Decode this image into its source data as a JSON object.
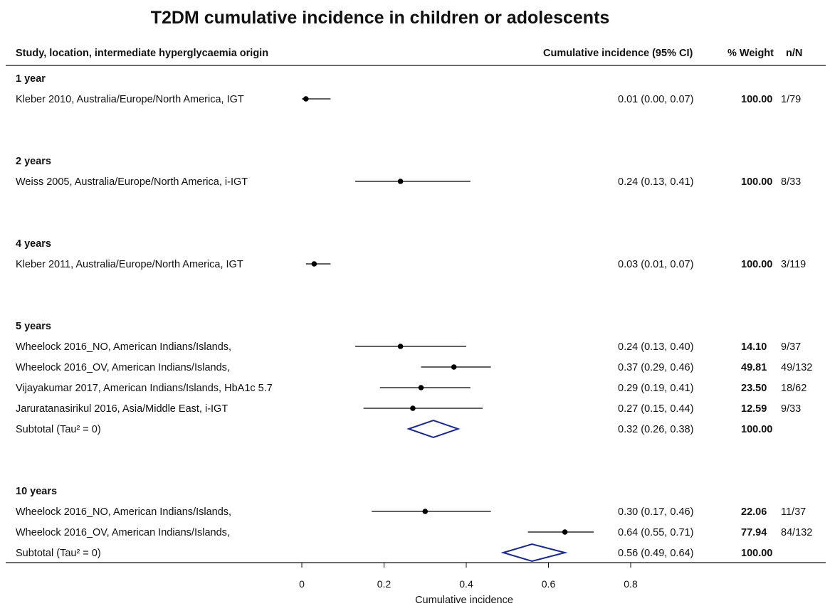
{
  "chart_data": {
    "type": "forest",
    "title": "T2DM cumulative incidence in children or adolescents",
    "columns": {
      "study": "Study, location, intermediate hyperglycaemia origin",
      "estimate": "Cumulative incidence (95% CI)",
      "weight": "% Weight",
      "nn": "n/N"
    },
    "xlabel": "Cumulative incidence",
    "xlim": [
      0,
      0.8
    ],
    "xticks": [
      "0",
      "0.2",
      "0.4",
      "0.6",
      "0.8"
    ],
    "groups": [
      {
        "label": "1 year",
        "studies": [
          {
            "label": "Kleber 2010, Australia/Europe/North America, IGT",
            "est": 0.01,
            "lo": 0.0,
            "hi": 0.07,
            "ci_text": "0.01 (0.00, 0.07)",
            "weight": "100.00",
            "nn": "1/79"
          }
        ]
      },
      {
        "label": "2 years",
        "studies": [
          {
            "label": "Weiss 2005, Australia/Europe/North America, i-IGT",
            "est": 0.24,
            "lo": 0.13,
            "hi": 0.41,
            "ci_text": "0.24 (0.13, 0.41)",
            "weight": "100.00",
            "nn": "8/33"
          }
        ]
      },
      {
        "label": "4 years",
        "studies": [
          {
            "label": "Kleber 2011, Australia/Europe/North America, IGT",
            "est": 0.03,
            "lo": 0.01,
            "hi": 0.07,
            "ci_text": "0.03 (0.01, 0.07)",
            "weight": "100.00",
            "nn": "3/119"
          }
        ]
      },
      {
        "label": "5 years",
        "studies": [
          {
            "label": "Wheelock 2016_NO, American Indians/Islands,",
            "est": 0.24,
            "lo": 0.13,
            "hi": 0.4,
            "ci_text": "0.24 (0.13, 0.40)",
            "weight": "14.10",
            "nn": "9/37"
          },
          {
            "label": "Wheelock 2016_OV, American Indians/Islands,",
            "est": 0.37,
            "lo": 0.29,
            "hi": 0.46,
            "ci_text": "0.37 (0.29, 0.46)",
            "weight": "49.81",
            "nn": "49/132"
          },
          {
            "label": "Vijayakumar 2017, American Indians/Islands, HbA1c 5.7",
            "est": 0.29,
            "lo": 0.19,
            "hi": 0.41,
            "ci_text": "0.29 (0.19, 0.41)",
            "weight": "23.50",
            "nn": "18/62"
          },
          {
            "label": "Jaruratanasirikul 2016, Asia/Middle East, i-IGT",
            "est": 0.27,
            "lo": 0.15,
            "hi": 0.44,
            "ci_text": "0.27 (0.15, 0.44)",
            "weight": "12.59",
            "nn": "9/33"
          }
        ],
        "subtotal": {
          "label": "Subtotal  (Tau² = 0)",
          "est": 0.32,
          "lo": 0.26,
          "hi": 0.38,
          "ci_text": "0.32 (0.26, 0.38)",
          "weight": "100.00"
        }
      },
      {
        "label": "10 years",
        "studies": [
          {
            "label": "Wheelock 2016_NO, American Indians/Islands,",
            "est": 0.3,
            "lo": 0.17,
            "hi": 0.46,
            "ci_text": "0.30 (0.17, 0.46)",
            "weight": "22.06",
            "nn": "11/37"
          },
          {
            "label": "Wheelock 2016_OV, American Indians/Islands,",
            "est": 0.64,
            "lo": 0.55,
            "hi": 0.71,
            "ci_text": "0.64 (0.55, 0.71)",
            "weight": "77.94",
            "nn": "84/132"
          }
        ],
        "subtotal": {
          "label": "Subtotal  (Tau² = 0)",
          "est": 0.56,
          "lo": 0.49,
          "hi": 0.64,
          "ci_text": "0.56 (0.49, 0.64)",
          "weight": "100.00"
        }
      }
    ],
    "colors": {
      "point": "#000000",
      "diamond": "#1a2a8c",
      "text": "#111111"
    }
  }
}
